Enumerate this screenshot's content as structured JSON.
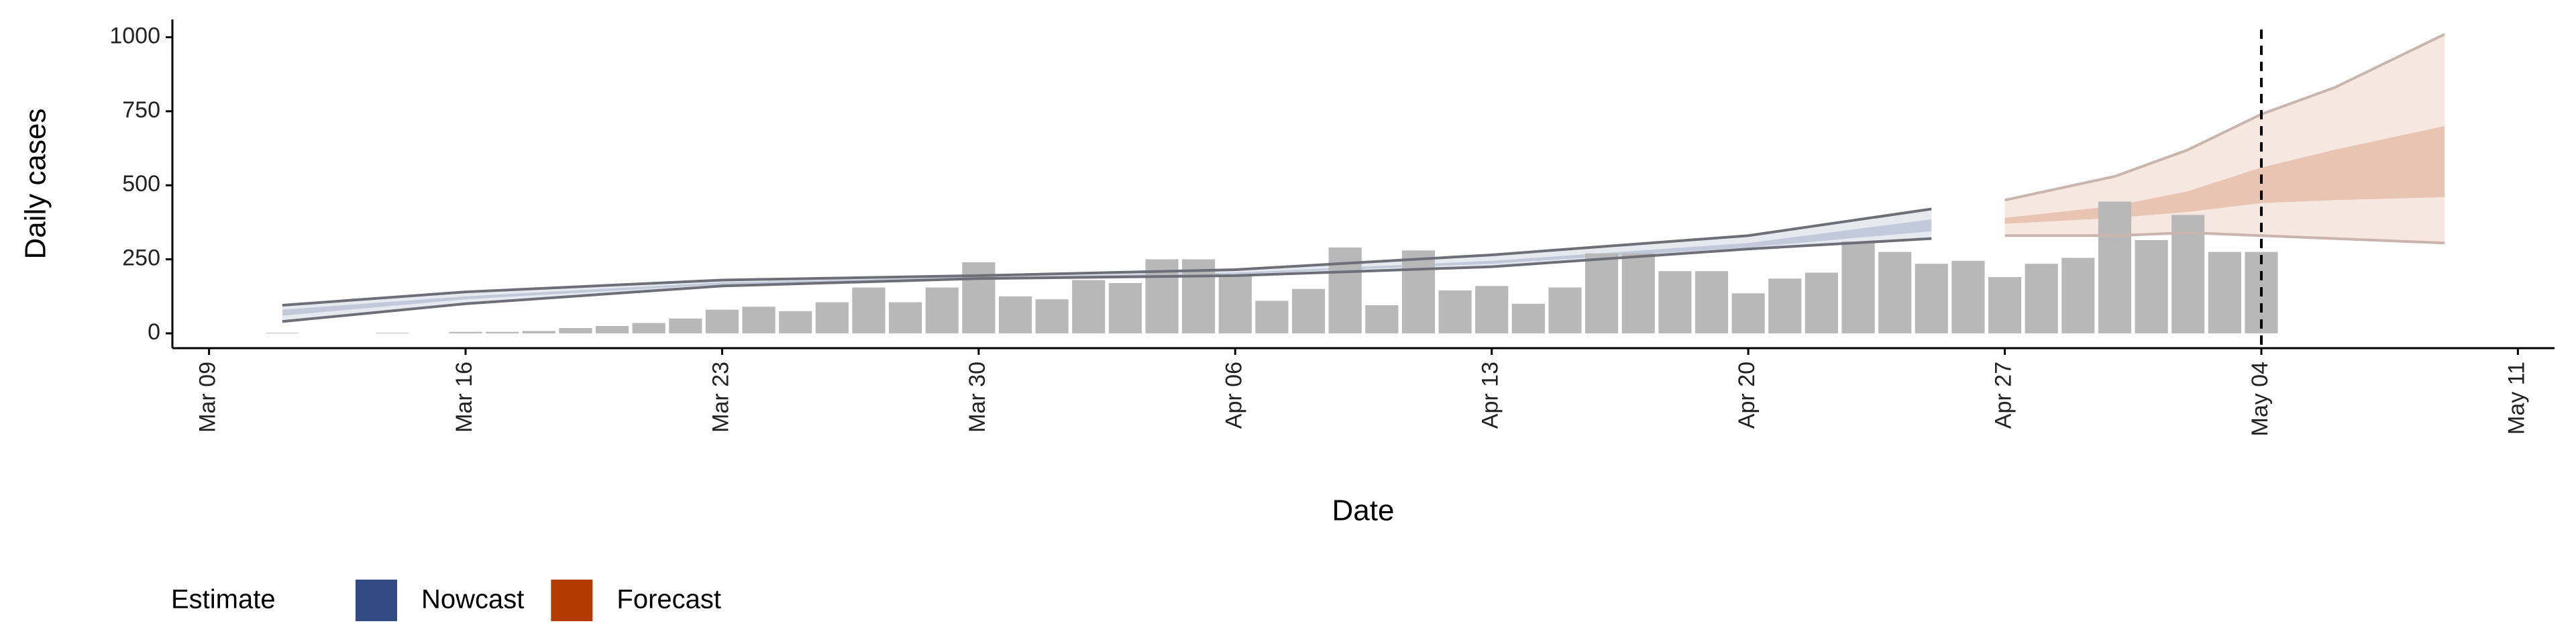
{
  "chart_data": {
    "type": "bar",
    "x_label": "Date",
    "y_label": "Daily cases",
    "legend_title": "Estimate",
    "ylim": [
      -50,
      1060
    ],
    "yticks": [
      0,
      250,
      500,
      750,
      1000
    ],
    "xlim": [
      "Mar 08",
      "May 12"
    ],
    "xticks": [
      "Mar 09",
      "Mar 16",
      "Mar 23",
      "Mar 30",
      "Apr 06",
      "Apr 13",
      "Apr 20",
      "Apr 27",
      "May 04",
      "May 11"
    ],
    "vline": "May 04",
    "bars": {
      "color": "#b8b8b8",
      "x": [
        "Mar 11",
        "Mar 14",
        "Mar 16",
        "Mar 17",
        "Mar 18",
        "Mar 19",
        "Mar 20",
        "Mar 21",
        "Mar 22",
        "Mar 23",
        "Mar 24",
        "Mar 25",
        "Mar 26",
        "Mar 27",
        "Mar 28",
        "Mar 29",
        "Mar 30",
        "Mar 31",
        "Apr 01",
        "Apr 02",
        "Apr 03",
        "Apr 04",
        "Apr 05",
        "Apr 06",
        "Apr 07",
        "Apr 08",
        "Apr 09",
        "Apr 10",
        "Apr 11",
        "Apr 12",
        "Apr 13",
        "Apr 14",
        "Apr 15",
        "Apr 16",
        "Apr 17",
        "Apr 18",
        "Apr 19",
        "Apr 20",
        "Apr 21",
        "Apr 22",
        "Apr 23",
        "Apr 24",
        "Apr 25",
        "Apr 26",
        "Apr 27",
        "Apr 28",
        "Apr 29",
        "Apr 30",
        "May 01",
        "May 02",
        "May 03",
        "May 04"
      ],
      "values": [
        2,
        2,
        5,
        5,
        8,
        18,
        25,
        35,
        50,
        80,
        90,
        75,
        105,
        155,
        105,
        155,
        240,
        125,
        115,
        180,
        170,
        250,
        250,
        195,
        110,
        150,
        290,
        95,
        280,
        145,
        160,
        100,
        155,
        270,
        270,
        210,
        210,
        135,
        185,
        205,
        310,
        275,
        235,
        245,
        190,
        235,
        255,
        445,
        315,
        400,
        275,
        275
      ]
    },
    "series": [
      {
        "name": "Nowcast",
        "color": "#324b84",
        "x": [
          "Mar 11",
          "Mar 16",
          "Mar 23",
          "Mar 30",
          "Apr 06",
          "Apr 13",
          "Apr 20",
          "Apr 25"
        ],
        "upper": [
          95,
          140,
          180,
          195,
          215,
          265,
          330,
          420
        ],
        "lower": [
          40,
          100,
          160,
          185,
          195,
          225,
          285,
          320
        ],
        "inner_upper": [
          80,
          125,
          172,
          190,
          205,
          245,
          305,
          385
        ],
        "inner_lower": [
          60,
          115,
          165,
          185,
          200,
          235,
          290,
          345
        ]
      },
      {
        "name": "Forecast",
        "color": "#b33a00",
        "x": [
          "Apr 27",
          "Apr 30",
          "May 02",
          "May 04",
          "May 06",
          "May 09"
        ],
        "upper": [
          450,
          530,
          620,
          740,
          830,
          1010
        ],
        "lower": [
          330,
          330,
          340,
          330,
          320,
          305
        ],
        "inner_upper": [
          390,
          430,
          480,
          560,
          620,
          700
        ],
        "inner_lower": [
          370,
          390,
          410,
          440,
          450,
          460
        ]
      }
    ]
  }
}
